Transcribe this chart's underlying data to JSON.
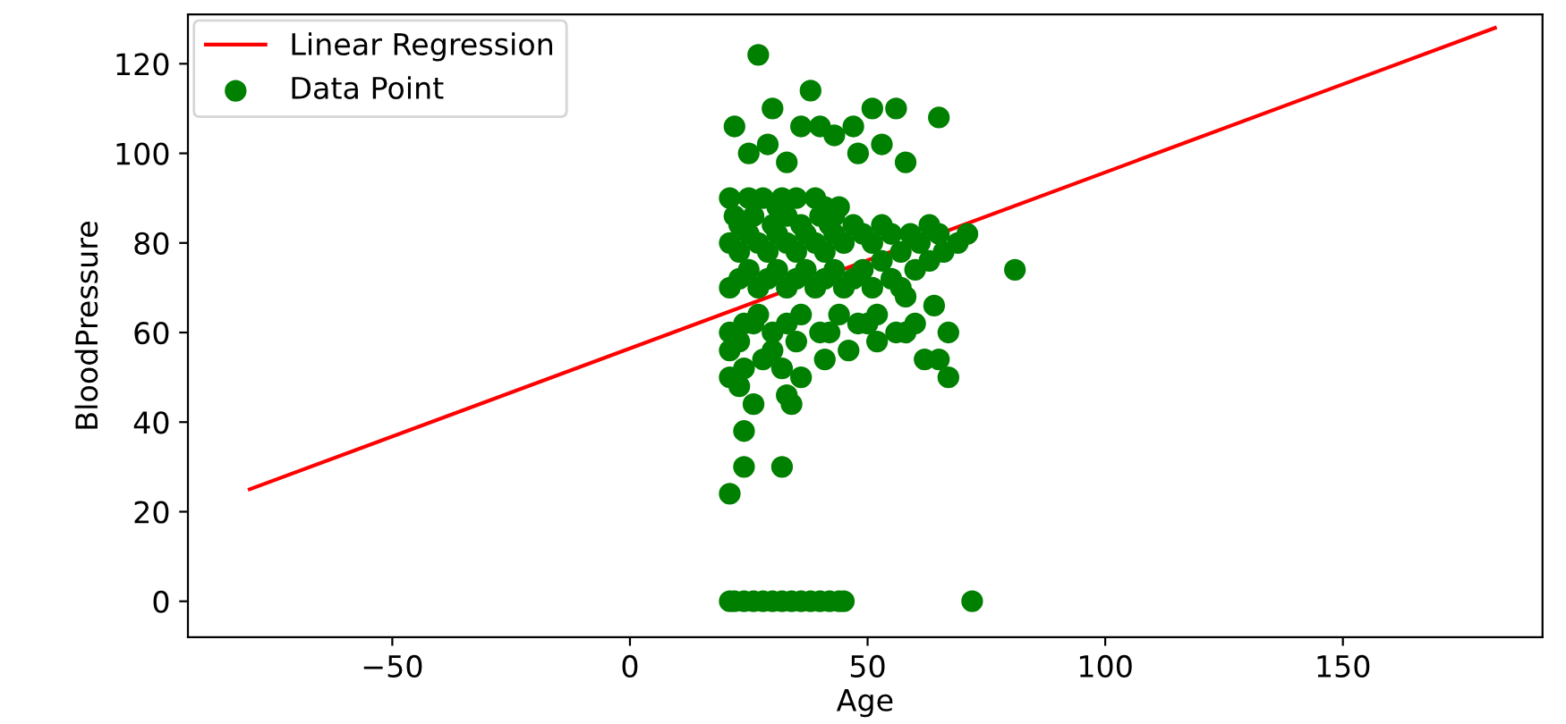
{
  "chart_data": {
    "type": "scatter",
    "xlabel": "Age",
    "ylabel": "BloodPressure",
    "xlim": [
      -93,
      192
    ],
    "ylim": [
      -8,
      131
    ],
    "xticks": [
      {
        "value": -50,
        "label": "−50"
      },
      0,
      50,
      100,
      150
    ],
    "yticks": [
      0,
      20,
      40,
      60,
      80,
      100,
      120
    ],
    "grid": false,
    "legend": "top left",
    "series": [
      {
        "name": "Linear Regression",
        "type": "line",
        "color": "#ff0000",
        "marker": "none",
        "x": [
          -80,
          182
        ],
        "values": [
          25,
          128
        ]
      },
      {
        "name": "Data Point",
        "color": "#008000",
        "marker": "circle",
        "x": [
          21,
          22,
          24,
          26,
          28,
          30,
          32,
          34,
          36,
          38,
          40,
          42,
          44,
          45,
          72,
          21,
          24,
          32,
          24,
          26,
          34,
          33,
          23,
          81,
          27,
          38,
          30,
          22,
          36,
          40,
          47,
          51,
          56,
          65,
          25,
          29,
          33,
          43,
          48,
          53,
          58,
          21,
          22,
          23,
          25,
          26,
          28,
          30,
          31,
          32,
          33,
          35,
          36,
          39,
          40,
          41,
          42,
          43,
          44,
          21,
          23,
          25,
          27,
          29,
          31,
          33,
          35,
          37,
          39,
          41,
          43,
          45,
          47,
          49,
          51,
          53,
          55,
          57,
          59,
          61,
          63,
          65,
          21,
          23,
          25,
          27,
          29,
          31,
          33,
          35,
          37,
          39,
          41,
          43,
          45,
          47,
          49,
          51,
          53,
          55,
          57,
          60,
          63,
          66,
          69,
          71,
          21,
          24,
          27,
          30,
          33,
          36,
          40,
          44,
          48,
          52,
          56,
          60,
          64,
          67,
          21,
          24,
          28,
          32,
          36,
          41,
          46,
          52,
          58,
          62,
          65,
          67,
          21,
          23,
          26,
          30,
          35,
          42,
          50,
          58
        ],
        "values": [
          0,
          0,
          0,
          0,
          0,
          0,
          0,
          0,
          0,
          0,
          0,
          0,
          0,
          0,
          0,
          24,
          30,
          30,
          38,
          44,
          44,
          46,
          48,
          74,
          122,
          114,
          110,
          106,
          106,
          106,
          106,
          110,
          110,
          108,
          100,
          102,
          98,
          104,
          100,
          102,
          98,
          90,
          86,
          84,
          90,
          86,
          90,
          84,
          88,
          90,
          86,
          90,
          84,
          90,
          86,
          88,
          84,
          86,
          88,
          80,
          78,
          82,
          80,
          78,
          82,
          80,
          78,
          82,
          80,
          78,
          82,
          80,
          84,
          82,
          80,
          84,
          82,
          78,
          82,
          80,
          84,
          82,
          70,
          72,
          74,
          70,
          72,
          74,
          70,
          72,
          74,
          70,
          72,
          74,
          70,
          72,
          74,
          70,
          76,
          72,
          70,
          74,
          76,
          78,
          80,
          82,
          60,
          62,
          64,
          60,
          62,
          64,
          60,
          64,
          62,
          64,
          60,
          62,
          66,
          60,
          50,
          52,
          54,
          52,
          50,
          54,
          56,
          58,
          60,
          54,
          54,
          50,
          56,
          58,
          62,
          56,
          58,
          60,
          62,
          68
        ]
      }
    ]
  }
}
